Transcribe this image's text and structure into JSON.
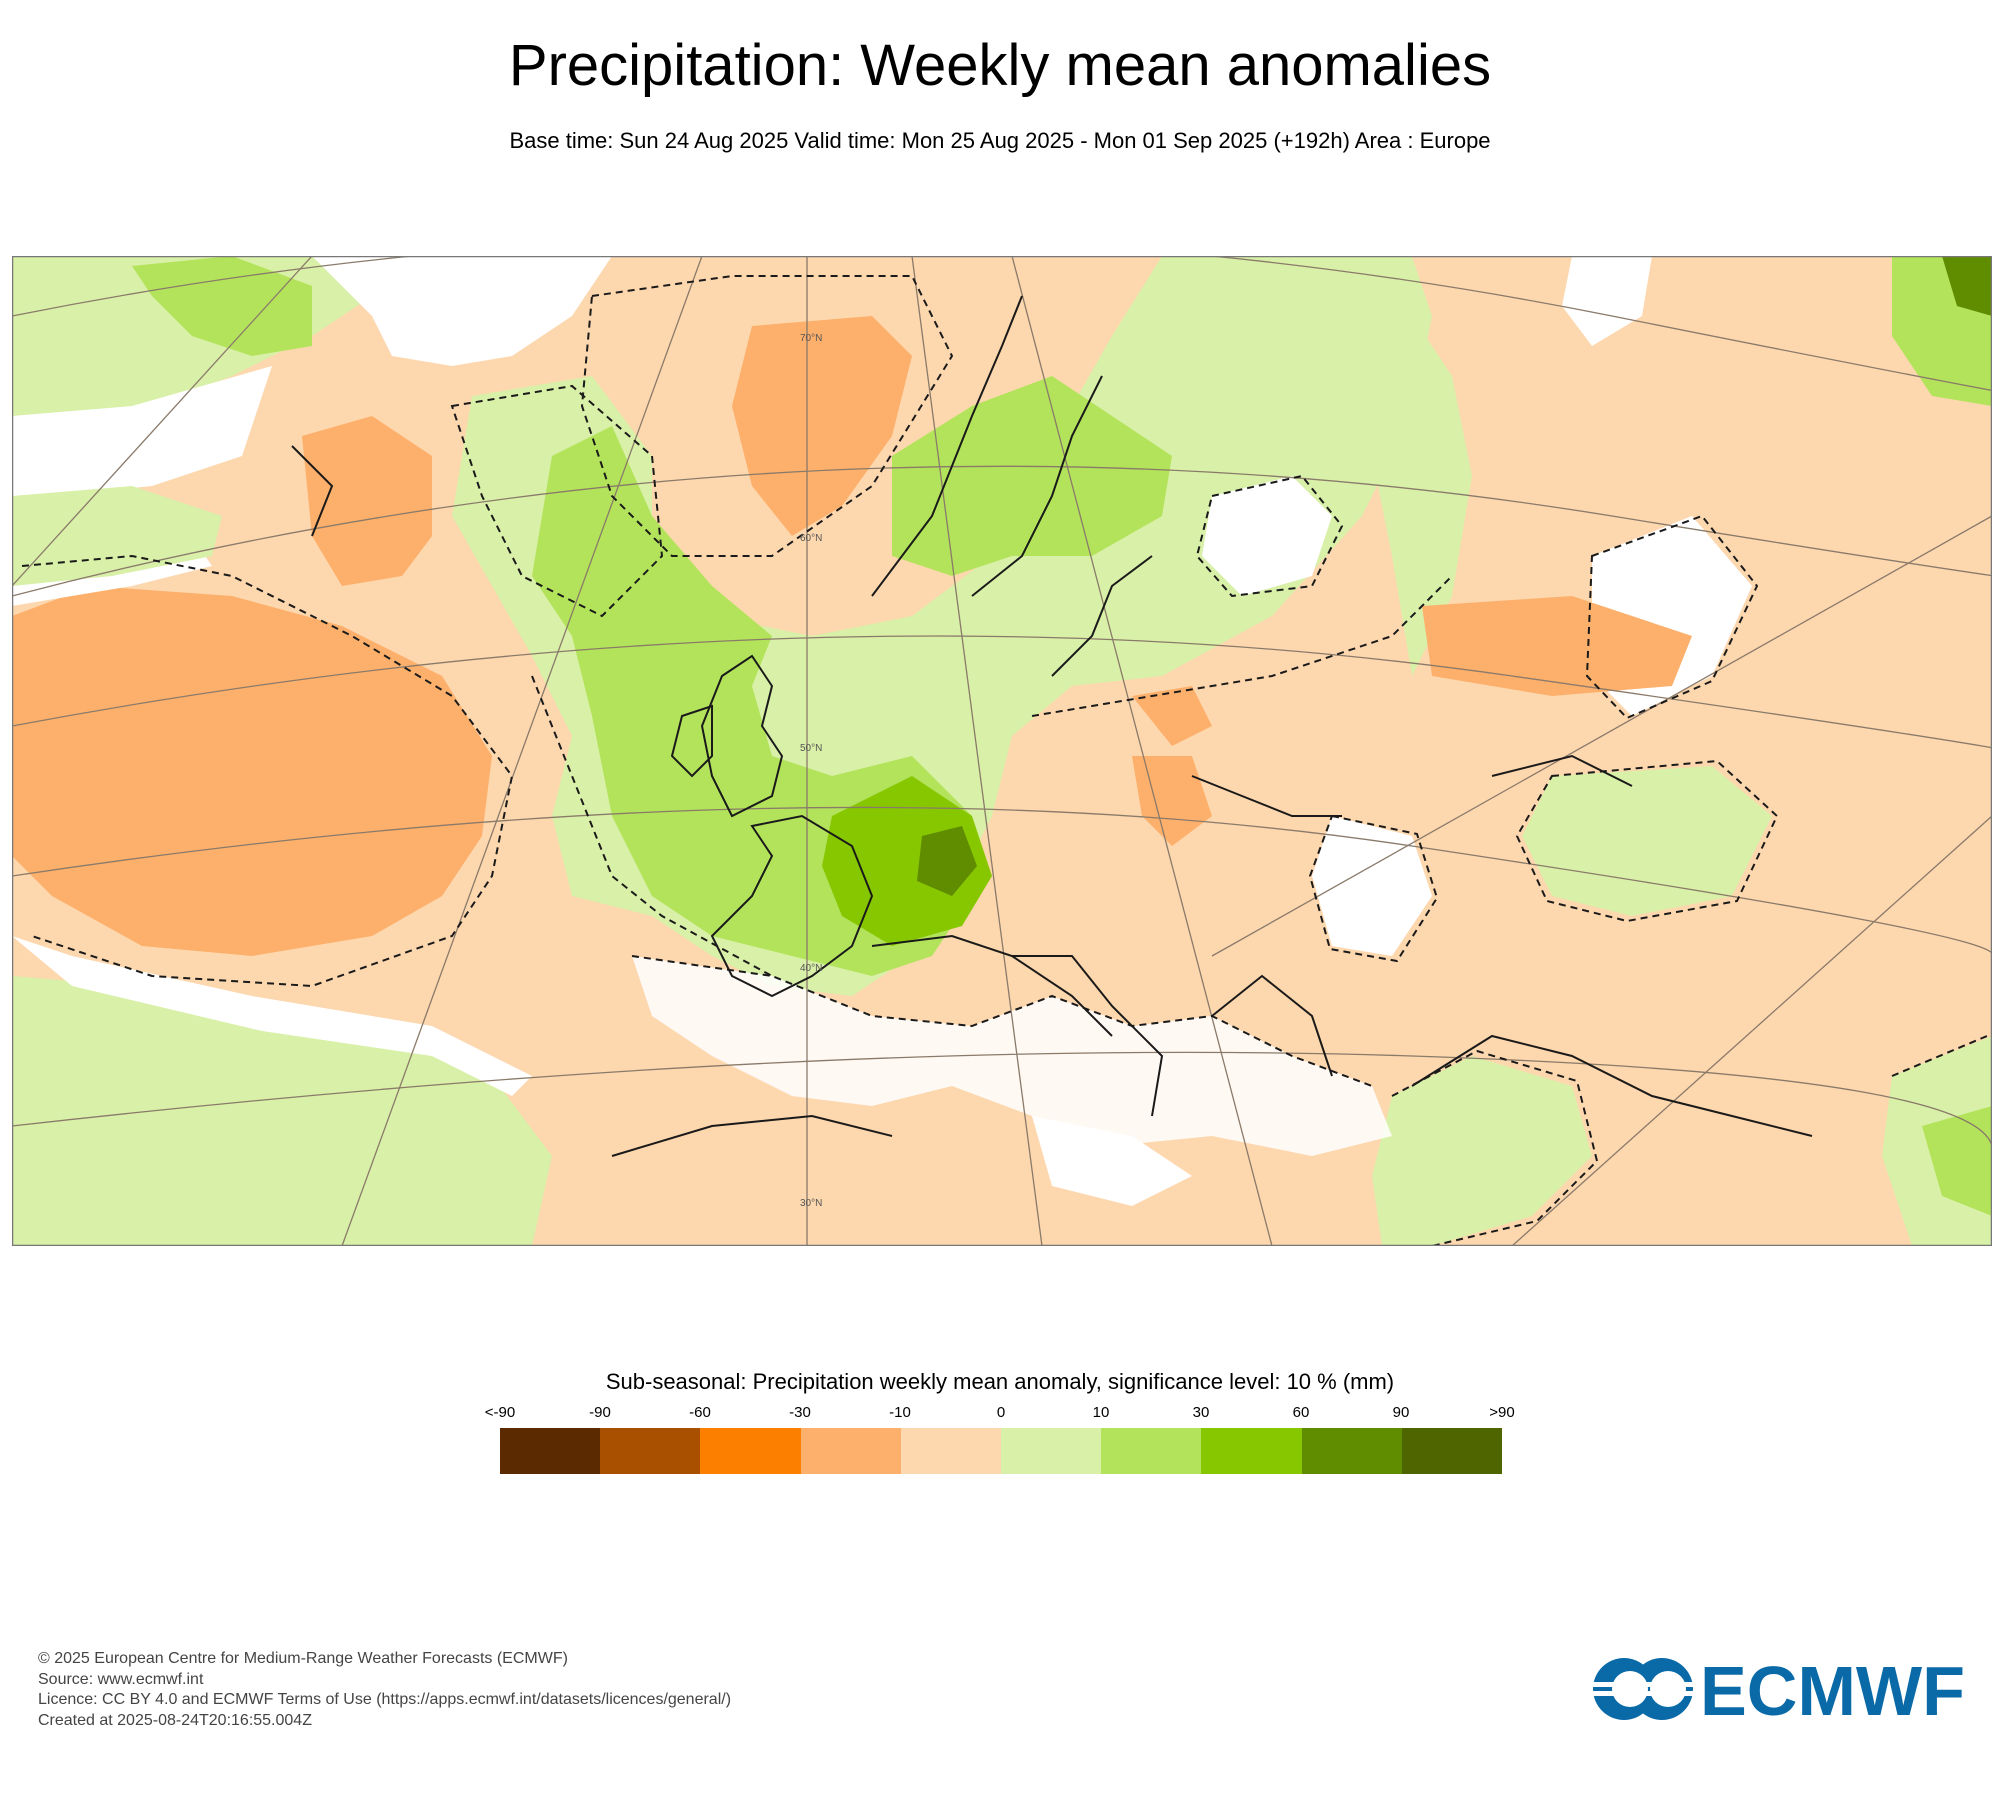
{
  "header": {
    "title": "Precipitation: Weekly mean anomalies",
    "subtitle": "Base time: Sun 24 Aug 2025 Valid time: Mon 25 Aug 2025 - Mon 01 Sep 2025 (+192h) Area : Europe"
  },
  "map": {
    "area": "Europe",
    "lat_labels": [
      "70°N",
      "60°N",
      "50°N",
      "40°N",
      "30°N"
    ],
    "colors": {
      "land_outline": "#1a1a1a",
      "graticule": "#8a7a6a",
      "frame": "#777777"
    }
  },
  "legend": {
    "title": "Sub-seasonal: Precipitation weekly mean anomaly, significance level: 10 % (mm)",
    "tick_labels": [
      "<-90",
      "-90",
      "-60",
      "-30",
      "-10",
      "0",
      "10",
      "30",
      "60",
      "90",
      ">90"
    ],
    "bins": [
      {
        "range": "<-90",
        "color": "#5c2a00"
      },
      {
        "range": "-90 to -60",
        "color": "#a94f00"
      },
      {
        "range": "-60 to -30",
        "color": "#fc7f00"
      },
      {
        "range": "-30 to -10",
        "color": "#fdb06b"
      },
      {
        "range": "-10 to 0",
        "color": "#fdd7ae"
      },
      {
        "range": "0 to 10",
        "color": "#d9f0a8"
      },
      {
        "range": "10 to 30",
        "color": "#b3e35b"
      },
      {
        "range": "30 to 60",
        "color": "#86c700"
      },
      {
        "range": "60 to 90",
        "color": "#608c00"
      },
      {
        "range": ">90",
        "color": "#4f6500"
      }
    ]
  },
  "footer": {
    "copyright": "© 2025 European Centre for Medium-Range Weather Forecasts (ECMWF)",
    "source": "Source: www.ecmwf.int",
    "licence": "Licence: CC BY 4.0 and ECMWF Terms of Use (https://apps.ecmwf.int/datasets/licences/general/)",
    "created": "Created at 2025-08-24T20:16:55.004Z"
  },
  "logo": {
    "text": "ECMWF",
    "color": "#0a6aa8"
  }
}
